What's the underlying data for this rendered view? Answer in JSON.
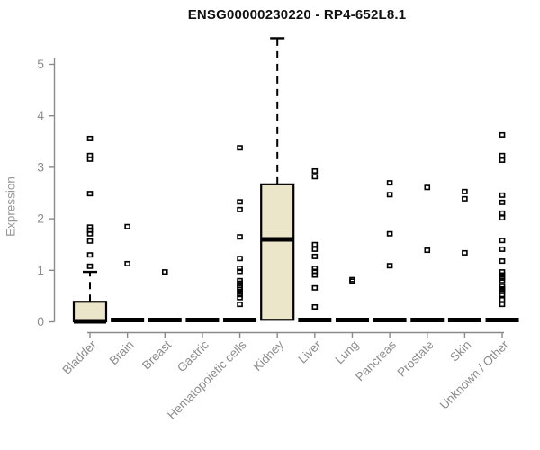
{
  "chart_data": {
    "type": "boxplot",
    "title": "ENSG00000230220 - RP4-652L8.1",
    "ylabel": "Expression",
    "xlabel": "",
    "ylim": [
      0,
      5.5
    ],
    "yticks": [
      0,
      1,
      2,
      3,
      4,
      5
    ],
    "grid": false,
    "legend": false,
    "categories": [
      "Bladder",
      "Brain",
      "Breast",
      "Gastric",
      "Hematopoietic cells",
      "Kidney",
      "Liver",
      "Lung",
      "Pancreas",
      "Prostate",
      "Skin",
      "Unknown / Other"
    ],
    "boxes": [
      {
        "category": "Bladder",
        "flat": false,
        "q1": 0,
        "median": 0,
        "q3": 0.38,
        "whisker_low": 0,
        "whisker_high": 0.96,
        "outliers": [
          3.55,
          3.22,
          3.15,
          2.48,
          1.83,
          1.77,
          1.7,
          1.56,
          1.29,
          1.07
        ]
      },
      {
        "category": "Brain",
        "flat": true,
        "q1": 0,
        "median": 0,
        "q3": 0,
        "whisker_low": 0,
        "whisker_high": 0,
        "outliers": [
          1.84,
          1.12
        ]
      },
      {
        "category": "Breast",
        "flat": true,
        "q1": 0,
        "median": 0,
        "q3": 0,
        "whisker_low": 0,
        "whisker_high": 0,
        "outliers": [
          0.96
        ]
      },
      {
        "category": "Gastric",
        "flat": true,
        "q1": 0,
        "median": 0,
        "q3": 0,
        "whisker_low": 0,
        "whisker_high": 0,
        "outliers": []
      },
      {
        "category": "Hematopoietic cells",
        "flat": true,
        "q1": 0,
        "median": 0,
        "q3": 0,
        "whisker_low": 0,
        "whisker_high": 0,
        "outliers": [
          3.37,
          2.32,
          2.17,
          1.64,
          1.22,
          1.03,
          0.97,
          0.79,
          0.74,
          0.7,
          0.66,
          0.62,
          0.57,
          0.52,
          0.46,
          0.33
        ]
      },
      {
        "category": "Kidney",
        "flat": false,
        "q1": 0.03,
        "median": 1.59,
        "q3": 2.66,
        "whisker_low": 0.03,
        "whisker_high": 5.5,
        "outliers": []
      },
      {
        "category": "Liver",
        "flat": true,
        "q1": 0,
        "median": 0,
        "q3": 0,
        "whisker_low": 0,
        "whisker_high": 0,
        "outliers": [
          2.92,
          2.81,
          1.49,
          1.4,
          1.26,
          1.03,
          0.97,
          0.9,
          0.65,
          0.28
        ]
      },
      {
        "category": "Lung",
        "flat": true,
        "q1": 0,
        "median": 0,
        "q3": 0,
        "whisker_low": 0,
        "whisker_high": 0,
        "outliers": [
          0.81,
          0.78
        ]
      },
      {
        "category": "Pancreas",
        "flat": true,
        "q1": 0,
        "median": 0,
        "q3": 0,
        "whisker_low": 0,
        "whisker_high": 0,
        "outliers": [
          2.69,
          2.46,
          1.7,
          1.08
        ]
      },
      {
        "category": "Prostate",
        "flat": true,
        "q1": 0,
        "median": 0,
        "q3": 0,
        "whisker_low": 0,
        "whisker_high": 0,
        "outliers": [
          2.6,
          1.38
        ]
      },
      {
        "category": "Skin",
        "flat": true,
        "q1": 0,
        "median": 0,
        "q3": 0,
        "whisker_low": 0,
        "whisker_high": 0,
        "outliers": [
          2.52,
          2.38,
          1.33
        ]
      },
      {
        "category": "Unknown / Other",
        "flat": true,
        "q1": 0,
        "median": 0,
        "q3": 0,
        "whisker_low": 0,
        "whisker_high": 0,
        "outliers": [
          3.62,
          3.22,
          3.13,
          2.45,
          2.31,
          2.1,
          2.01,
          1.57,
          1.4,
          1.17,
          0.96,
          0.9,
          0.84,
          0.79,
          0.68,
          0.63,
          0.58,
          0.52,
          0.42,
          0.33
        ]
      }
    ],
    "colors": {
      "box_fill": "#EBE5C9",
      "box_stroke": "#000000",
      "flat_box": "#000000",
      "outlier_stroke": "#000000",
      "axis": "#8A8A8A",
      "text": "#8C8C8C",
      "title_color": "#111111"
    }
  }
}
